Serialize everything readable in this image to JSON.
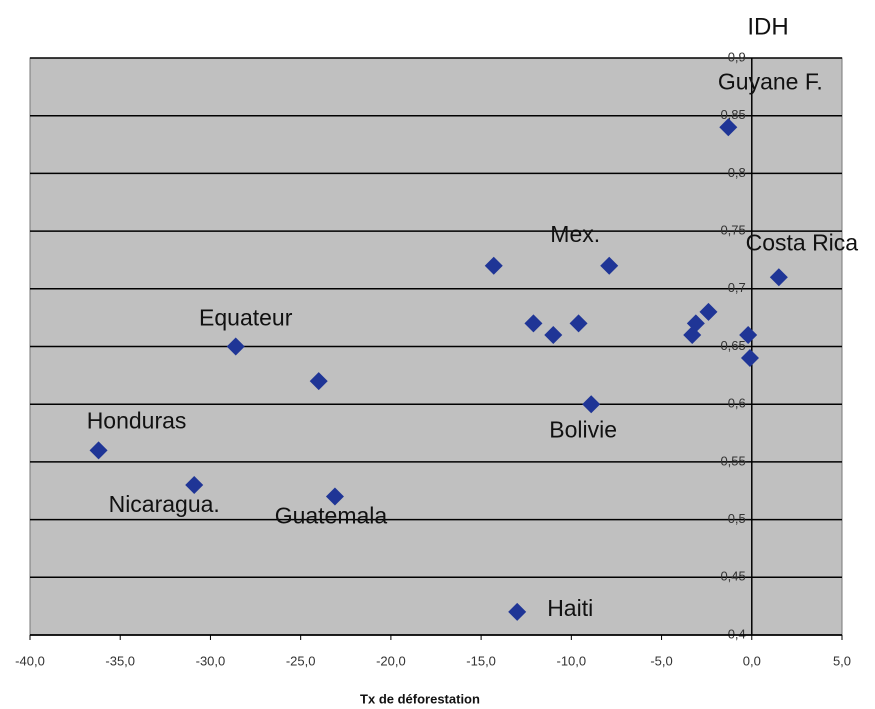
{
  "chart_data": {
    "type": "scatter",
    "x_label": "Tx de déforestation",
    "y_label": "IDH",
    "xlim": [
      -40,
      5
    ],
    "ylim": [
      0.4,
      0.9
    ],
    "xticks": [
      {
        "value": -40,
        "label": "-40,0"
      },
      {
        "value": -35,
        "label": "-35,0"
      },
      {
        "value": -30,
        "label": "-30,0"
      },
      {
        "value": -25,
        "label": "-25,0"
      },
      {
        "value": -20,
        "label": "-20,0"
      },
      {
        "value": -15,
        "label": "-15,0"
      },
      {
        "value": -10,
        "label": "-10,0"
      },
      {
        "value": -5,
        "label": "-5,0"
      },
      {
        "value": 0,
        "label": "0,0"
      },
      {
        "value": 5,
        "label": "5,0"
      }
    ],
    "yticks": [
      {
        "value": 0.4,
        "label": "0,4"
      },
      {
        "value": 0.45,
        "label": "0,45"
      },
      {
        "value": 0.5,
        "label": "0,5"
      },
      {
        "value": 0.55,
        "label": "0,55"
      },
      {
        "value": 0.6,
        "label": "0,6"
      },
      {
        "value": 0.65,
        "label": "0,65"
      },
      {
        "value": 0.7,
        "label": "0,7"
      },
      {
        "value": 0.75,
        "label": "0,75"
      },
      {
        "value": 0.8,
        "label": "0,8"
      },
      {
        "value": 0.85,
        "label": "0,85"
      },
      {
        "value": 0.9,
        "label": "0,9"
      }
    ],
    "grid": true,
    "series": [
      {
        "color": "#1f3596",
        "x": [
          -1.3,
          1.5,
          -0.2,
          -0.1,
          -2.4,
          -3.1,
          -3.3,
          -7.9,
          -14.3,
          -12.1,
          -11.0,
          -9.6,
          -8.9,
          -13.0,
          -28.6,
          -24.0,
          -36.2,
          -30.9,
          -23.1
        ],
        "values": [
          0.84,
          0.71,
          0.66,
          0.64,
          0.68,
          0.67,
          0.66,
          0.72,
          0.72,
          0.67,
          0.66,
          0.67,
          0.6,
          0.42,
          0.65,
          0.62,
          0.56,
          0.53,
          0.52
        ],
        "labels": [
          "Guyane F.",
          "Costa Rica",
          null,
          null,
          null,
          null,
          null,
          "Mex.",
          null,
          null,
          null,
          null,
          "Bolivie",
          "Haiti",
          "Equateur",
          null,
          "Honduras",
          "Nicaragua.",
          "Guatemala"
        ]
      }
    ]
  }
}
